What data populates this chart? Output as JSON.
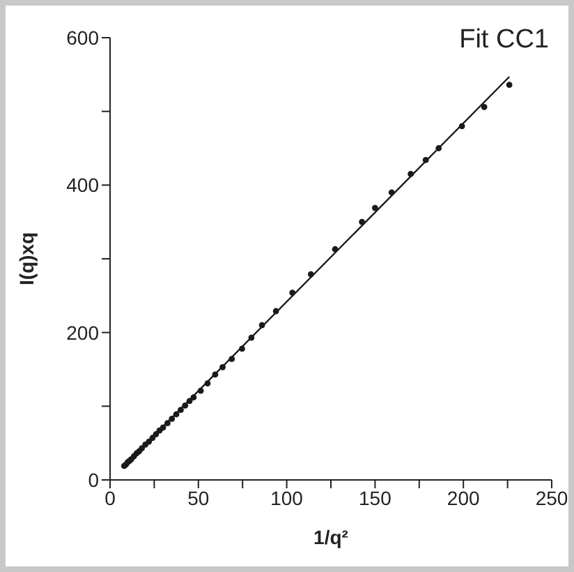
{
  "chart_data": {
    "type": "scatter",
    "xlabel": "1/q²",
    "ylabel": "I(q)xq",
    "annotations": [
      "Fit CC1"
    ],
    "xlim": [
      0,
      250
    ],
    "ylim": [
      0,
      600
    ],
    "xticks": [
      0,
      {
        "value": 25,
        "label": null
      },
      50,
      {
        "value": 75,
        "label": null
      },
      100,
      {
        "value": 125,
        "label": null
      },
      150,
      {
        "value": 175,
        "label": null
      },
      200,
      {
        "value": 225,
        "label": null
      },
      250
    ],
    "yticks": [
      0,
      {
        "value": 100,
        "label": null
      },
      200,
      {
        "value": 300,
        "label": null
      },
      400,
      {
        "value": 500,
        "label": null
      },
      600
    ],
    "marker": "circle",
    "series": [
      {
        "color": "#1a1a1a",
        "x": [
          8,
          9,
          10,
          11,
          12,
          13.5,
          15,
          16.5,
          18,
          20,
          22,
          24,
          26,
          28,
          30,
          32.5,
          35,
          37.5,
          40,
          42.5,
          45,
          47.3,
          51.3,
          55.2,
          59.5,
          63.7,
          68.9,
          74.7,
          80,
          86,
          93.9,
          103.2,
          113.7,
          127.4,
          142.6,
          150,
          159.4,
          170.2,
          178.7,
          186,
          199.2,
          211.8,
          226
        ],
        "values": [
          19,
          21,
          24,
          26,
          28,
          32,
          36,
          39,
          43,
          48,
          52,
          57,
          62,
          67,
          71,
          77,
          83,
          89,
          95,
          101,
          107,
          112,
          121,
          131,
          143,
          153,
          164,
          178,
          193,
          210,
          229,
          254,
          279,
          313,
          350,
          369,
          390,
          415,
          434,
          450,
          480,
          506,
          536
        ]
      },
      {
        "type": "line",
        "color": "#1a1a1a",
        "line_style": "solid",
        "marker": "none",
        "x": [
          8,
          226
        ],
        "values": [
          19,
          547
        ]
      }
    ]
  }
}
